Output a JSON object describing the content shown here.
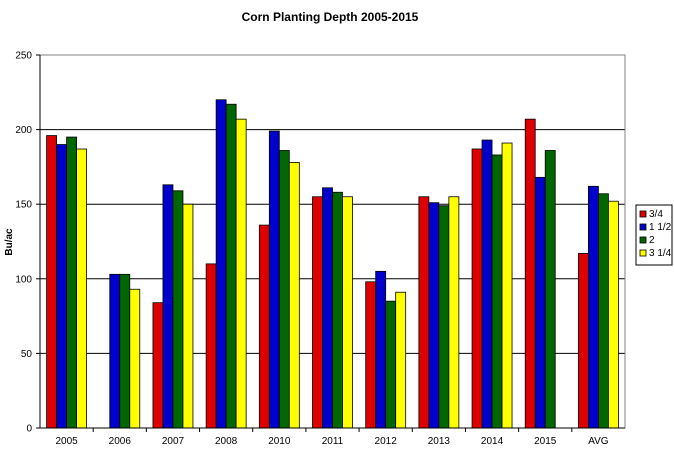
{
  "chart_data": {
    "type": "bar",
    "title": "Corn Planting Depth 2005-2015",
    "xlabel": "",
    "ylabel": "Bu/ac",
    "ylim": [
      0,
      250
    ],
    "yticks": [
      0,
      50,
      100,
      150,
      200,
      250
    ],
    "grid": true,
    "legend_position": "right",
    "categories": [
      "2005",
      "2006",
      "2007",
      "2008",
      "2010",
      "2011",
      "2012",
      "2013",
      "2014",
      "2015",
      "AVG"
    ],
    "series": [
      {
        "name": "3/4",
        "color": "#dd0000",
        "values": [
          196,
          null,
          84,
          110,
          136,
          155,
          98,
          155,
          187,
          207,
          117
        ]
      },
      {
        "name": "1 1/2",
        "color": "#0000cc",
        "values": [
          190,
          103,
          163,
          220,
          199,
          161,
          105,
          151,
          193,
          168,
          162
        ]
      },
      {
        "name": "2",
        "color": "#006600",
        "values": [
          195,
          103,
          159,
          217,
          186,
          158,
          85,
          149,
          183,
          186,
          157
        ]
      },
      {
        "name": "3 1/4",
        "color": "#ffff00",
        "values": [
          187,
          93,
          150,
          207,
          178,
          155,
          91,
          155,
          191,
          null,
          152
        ]
      }
    ]
  }
}
